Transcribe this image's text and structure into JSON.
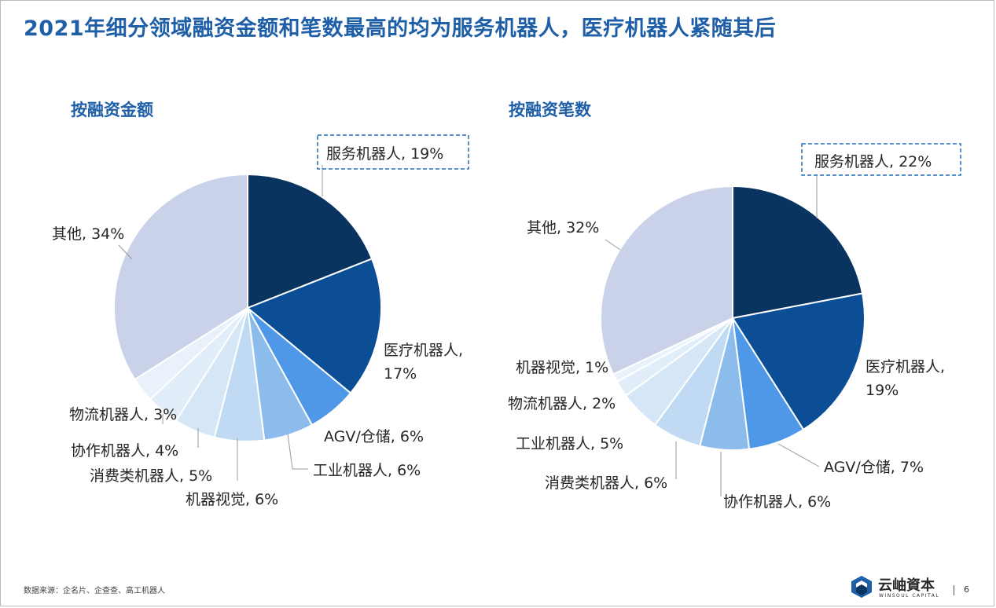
{
  "title": "2021年细分领域融资金额和笔数最高的均为服务机器人，医疗机器人紧随其后",
  "chart_data": [
    {
      "type": "pie",
      "title": "按融资金额",
      "categories": [
        "服务机器人",
        "医疗机器人",
        "AGV/仓储",
        "工业机器人",
        "机器视觉",
        "消费类机器人",
        "协作机器人",
        "物流机器人",
        "其他"
      ],
      "values": [
        19,
        17,
        6,
        6,
        6,
        5,
        4,
        3,
        34
      ],
      "unit": "%",
      "colors": [
        "#0a3460",
        "#0b4e96",
        "#4f98e8",
        "#8bbcec",
        "#c1daf3",
        "#d5e6f7",
        "#e1edf9",
        "#e9f1fa",
        "#c9d2e8"
      ],
      "labels": [
        {
          "lines": [
            "服务机器人, 19%"
          ],
          "highlight": true
        },
        {
          "lines": [
            "医疗机器人,",
            "17%"
          ]
        },
        {
          "lines": [
            "AGV/仓储, 6%"
          ]
        },
        {
          "lines": [
            "工业机器人, 6%"
          ]
        },
        {
          "lines": [
            "机器视觉, 6%"
          ]
        },
        {
          "lines": [
            "消费类机器人, 5%"
          ]
        },
        {
          "lines": [
            "协作机器人, 4%"
          ]
        },
        {
          "lines": [
            "物流机器人, 3%"
          ]
        },
        {
          "lines": [
            "其他, 34%"
          ]
        }
      ]
    },
    {
      "type": "pie",
      "title": "按融资笔数",
      "categories": [
        "服务机器人",
        "医疗机器人",
        "AGV/仓储",
        "协作机器人",
        "消费类机器人",
        "工业机器人",
        "物流机器人",
        "机器视觉",
        "其他"
      ],
      "values": [
        22,
        19,
        7,
        6,
        6,
        5,
        2,
        1,
        32
      ],
      "unit": "%",
      "colors": [
        "#0a3460",
        "#0b4e96",
        "#4f98e8",
        "#8bbcec",
        "#c1daf3",
        "#d5e6f7",
        "#e1edf9",
        "#e9f1fa",
        "#c9d2e8"
      ],
      "labels": [
        {
          "lines": [
            "服务机器人, 22%"
          ],
          "highlight": true
        },
        {
          "lines": [
            "医疗机器人,",
            "19%"
          ]
        },
        {
          "lines": [
            "AGV/仓储, 7%"
          ]
        },
        {
          "lines": [
            "协作机器人, 6%"
          ]
        },
        {
          "lines": [
            "消费类机器人, 6%"
          ]
        },
        {
          "lines": [
            "工业机器人, 5%"
          ]
        },
        {
          "lines": [
            "物流机器人, 2%"
          ]
        },
        {
          "lines": [
            "机器视觉, 1%"
          ]
        },
        {
          "lines": [
            "其他, 32%"
          ]
        }
      ]
    }
  ],
  "footer": {
    "source": "数据来源：企名片、企查查、高工机器人",
    "logo_cn": "云岫資本",
    "logo_en": "WINSOUL CAPITAL",
    "page_number": "6"
  }
}
